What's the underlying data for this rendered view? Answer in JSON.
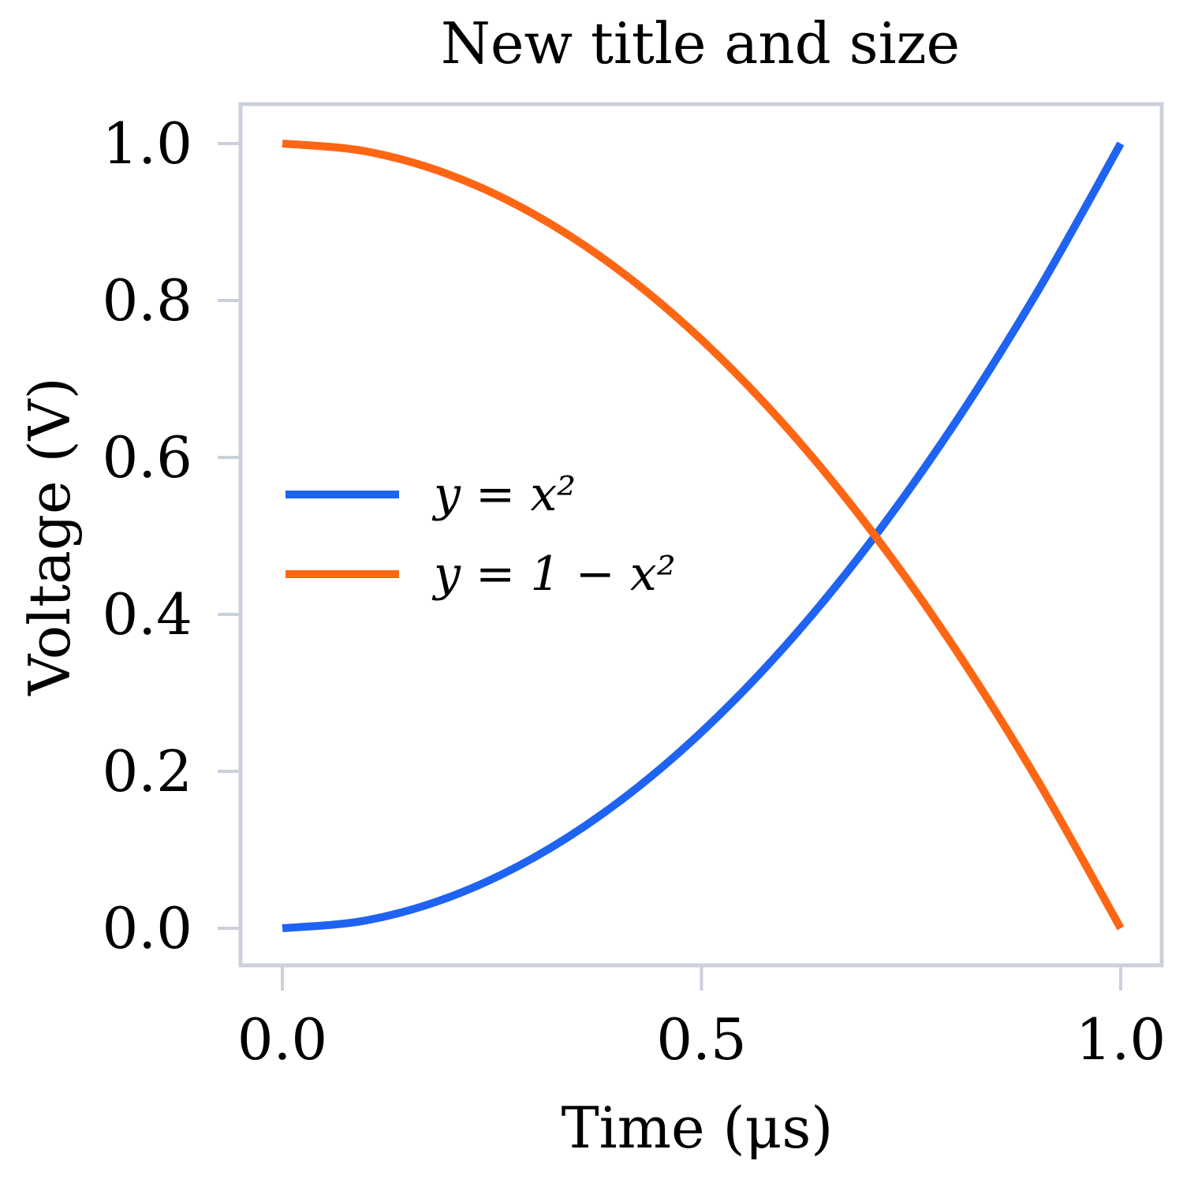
{
  "chart_data": {
    "type": "line",
    "title": "New title and size",
    "xlabel": "Time (μs)",
    "ylabel": "Voltage (V)",
    "xlim": [
      -0.1,
      1.05
    ],
    "ylim": [
      -0.05,
      1.05
    ],
    "xticks": [
      0.0,
      0.5,
      1.0
    ],
    "xtick_labels": [
      "0.0",
      "0.5",
      "1.0"
    ],
    "yticks": [
      0.0,
      0.2,
      0.4,
      0.6,
      0.8,
      1.0
    ],
    "ytick_labels": [
      "0.0",
      "0.2",
      "0.4",
      "0.6",
      "0.8",
      "1.0"
    ],
    "grid": false,
    "legend_position": "center-left",
    "series": [
      {
        "name": "y = x²",
        "color": "#1f63f2",
        "x": [
          0.0,
          0.1,
          0.2,
          0.3,
          0.4,
          0.5,
          0.6,
          0.7,
          0.8,
          0.9,
          1.0
        ],
        "y": [
          0.0,
          0.01,
          0.04,
          0.09,
          0.16,
          0.25,
          0.36,
          0.49,
          0.64,
          0.81,
          1.0
        ]
      },
      {
        "name": "y = 1 − x²",
        "color": "#ff6614",
        "x": [
          0.0,
          0.1,
          0.2,
          0.3,
          0.4,
          0.5,
          0.6,
          0.7,
          0.8,
          0.9,
          1.0
        ],
        "y": [
          1.0,
          0.99,
          0.96,
          0.91,
          0.84,
          0.75,
          0.64,
          0.51,
          0.36,
          0.19,
          0.0
        ]
      }
    ],
    "frame_color": "#cbd0dc"
  }
}
